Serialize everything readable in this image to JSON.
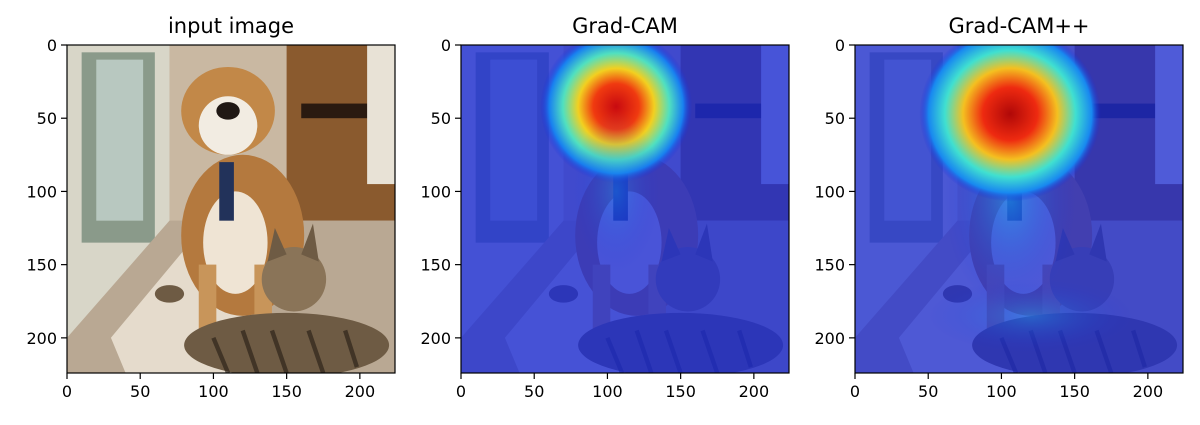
{
  "figure": {
    "panels": [
      {
        "id": "input",
        "title": "input image",
        "kind": "photo",
        "description_icon": "dog-and-cat-photo",
        "xticks": [
          "0",
          "50",
          "100",
          "150",
          "200"
        ],
        "yticks": [
          "0",
          "50",
          "100",
          "150",
          "200"
        ]
      },
      {
        "id": "gradcam",
        "title": "Grad-CAM",
        "kind": "heatmap",
        "description_icon": "attention-heatmap",
        "xticks": [
          "0",
          "50",
          "100",
          "150",
          "200"
        ],
        "yticks": [
          "0",
          "50",
          "100",
          "150",
          "200"
        ]
      },
      {
        "id": "gradcampp",
        "title": "Grad-CAM++",
        "kind": "heatmap",
        "description_icon": "attention-heatmap",
        "xticks": [
          "0",
          "50",
          "100",
          "150",
          "200"
        ],
        "yticks": [
          "0",
          "50",
          "100",
          "150",
          "200"
        ]
      }
    ],
    "axis_range": [
      0,
      224
    ],
    "colors": {
      "heat_low": "#1a2bd8",
      "heat_mid": "#18c8e0",
      "heat_high": "#e8141a",
      "floor": "#b9a893",
      "wall": "#8a5a2e"
    }
  }
}
